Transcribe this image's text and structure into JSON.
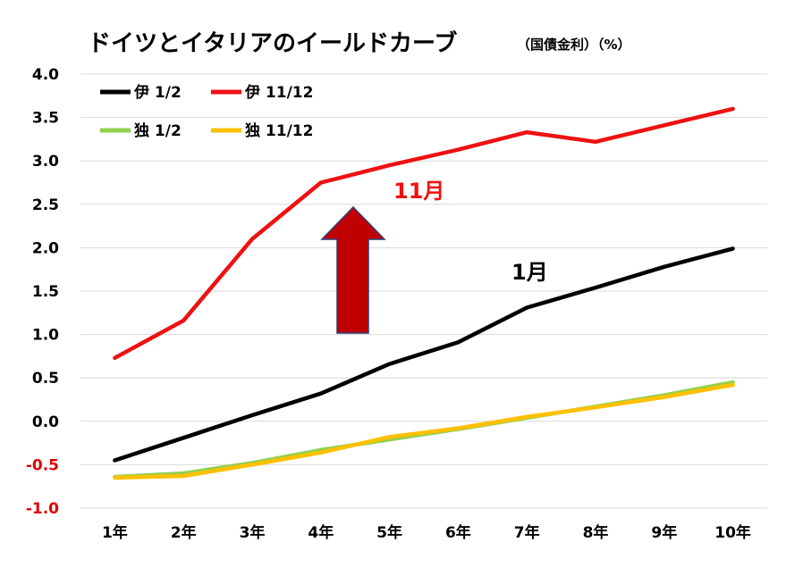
{
  "chart_data": {
    "type": "line",
    "title": "ドイツとイタリアのイールドカーブ",
    "subtitle": "（国債金利）（%）",
    "categories": [
      "1年",
      "2年",
      "3年",
      "4年",
      "5年",
      "6年",
      "7年",
      "8年",
      "9年",
      "10年"
    ],
    "ylim": [
      -1.0,
      4.0
    ],
    "yticks": [
      "4.0",
      "3.5",
      "3.0",
      "2.5",
      "2.0",
      "1.5",
      "1.0",
      "0.5",
      "0.0",
      "-0.5",
      "-1.0"
    ],
    "negative_tick_color": "#e00000",
    "grid": true,
    "legend_position": "top-left",
    "series": [
      {
        "name": "伊 1/2",
        "color": "#000000",
        "values": [
          -0.45,
          -0.19,
          0.07,
          0.32,
          0.66,
          0.91,
          1.31,
          1.54,
          1.78,
          1.99
        ]
      },
      {
        "name": "伊 11/12",
        "color": "#ee1111",
        "values": [
          0.73,
          1.16,
          2.1,
          2.75,
          2.95,
          3.13,
          3.33,
          3.22,
          3.41,
          3.6
        ]
      },
      {
        "name": "独 1/2",
        "color": "#92d050",
        "values": [
          -0.64,
          -0.6,
          -0.48,
          -0.33,
          -0.21,
          -0.09,
          0.04,
          0.17,
          0.3,
          0.45
        ]
      },
      {
        "name": "独 11/12",
        "color": "#ffc000",
        "values": [
          -0.65,
          -0.63,
          -0.5,
          -0.36,
          -0.18,
          -0.08,
          0.05,
          0.16,
          0.28,
          0.42
        ]
      }
    ],
    "annotations": [
      {
        "text": "11月",
        "color": "#ee1111"
      },
      {
        "text": "1月",
        "color": "#000000"
      }
    ],
    "arrow": {
      "color": "#c00000",
      "outline": "#2f3a7a",
      "direction": "up"
    }
  }
}
